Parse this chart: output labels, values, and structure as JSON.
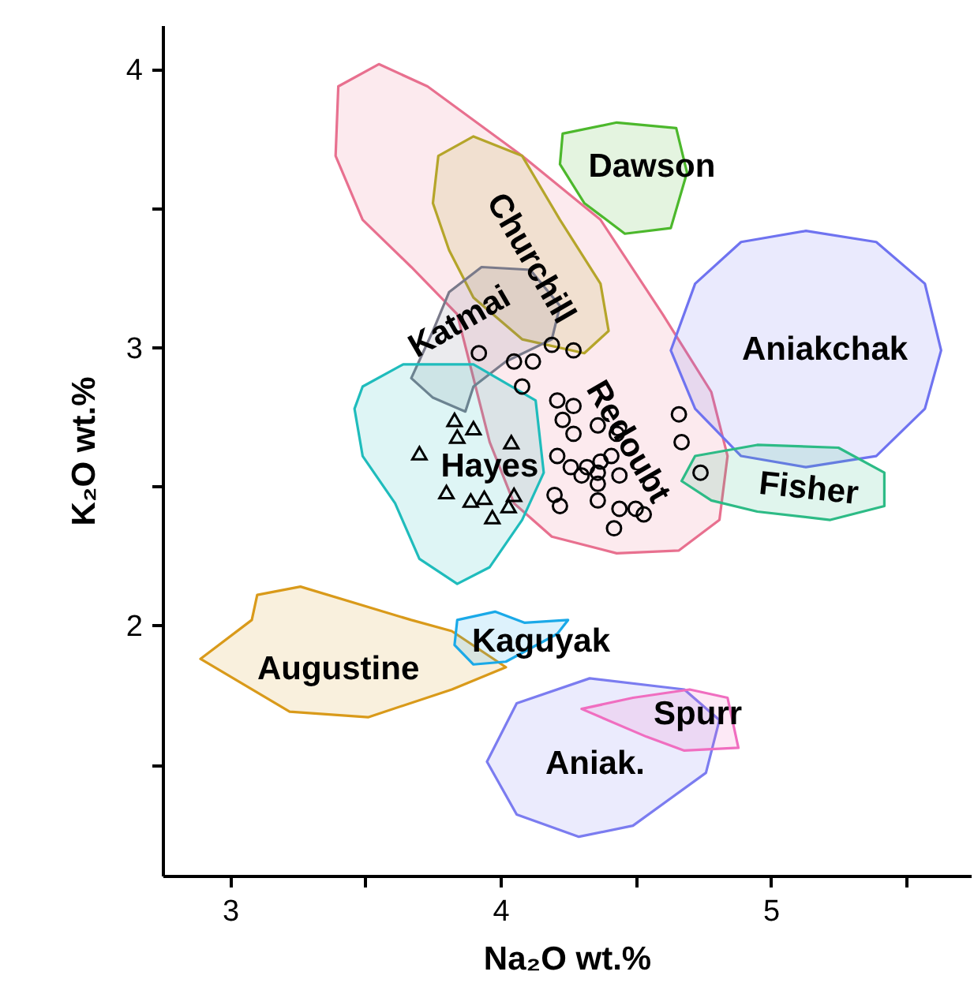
{
  "chart_data": {
    "type": "scatter",
    "xlabel": "Na₂O wt.%",
    "ylabel": "K₂O wt.%",
    "xlim": [
      2.75,
      5.74
    ],
    "ylim": [
      1.1,
      4.16
    ],
    "xticks": [
      3,
      {
        "value": 3.5,
        "label": null
      },
      4,
      {
        "value": 4.5,
        "label": null
      },
      5,
      {
        "value": 5.5,
        "label": null
      }
    ],
    "yticks": [
      {
        "value": 1.5,
        "label": null
      },
      2,
      {
        "value": 2.5,
        "label": null
      },
      3,
      {
        "value": 3.5,
        "label": null
      },
      4
    ],
    "grid": false,
    "series": [
      {
        "type": "area",
        "color": "#e8708f",
        "x": [
          3.4,
          3.55,
          3.73,
          4.08,
          4.37,
          4.6,
          4.78,
          4.84,
          4.81,
          4.66,
          4.43,
          4.19,
          4.05,
          3.96,
          3.9,
          3.84,
          3.67,
          3.49,
          3.39
        ],
        "values": [
          3.94,
          4.02,
          3.94,
          3.69,
          3.46,
          3.12,
          2.84,
          2.61,
          2.38,
          2.27,
          2.26,
          2.32,
          2.44,
          2.66,
          2.89,
          3.12,
          3.29,
          3.46,
          3.69
        ]
      },
      {
        "type": "area",
        "color": "#b5a52a",
        "x": [
          3.77,
          3.9,
          4.08,
          4.22,
          4.37,
          4.4,
          4.31,
          4.08,
          3.9,
          3.81,
          3.75
        ],
        "values": [
          3.69,
          3.76,
          3.69,
          3.46,
          3.23,
          3.06,
          2.98,
          3.03,
          3.18,
          3.35,
          3.52
        ]
      },
      {
        "type": "area",
        "color": "#4cb82c",
        "x": [
          4.23,
          4.43,
          4.65,
          4.69,
          4.63,
          4.46,
          4.31,
          4.22
        ],
        "values": [
          3.77,
          3.81,
          3.79,
          3.63,
          3.43,
          3.41,
          3.52,
          3.66
        ]
      },
      {
        "type": "area",
        "color": "#7a7a8a",
        "x": [
          3.81,
          3.93,
          4.11,
          4.22,
          4.19,
          4.02,
          3.9,
          3.87,
          3.75,
          3.67,
          3.75
        ],
        "values": [
          3.2,
          3.29,
          3.28,
          3.15,
          3.03,
          2.95,
          2.86,
          2.77,
          2.82,
          2.89,
          3.06
        ]
      },
      {
        "type": "area",
        "color": "#1fbcbc",
        "x": [
          3.49,
          3.64,
          3.9,
          4.13,
          4.16,
          4.08,
          3.96,
          3.84,
          3.7,
          3.61,
          3.49,
          3.46
        ],
        "values": [
          2.86,
          2.94,
          2.94,
          2.81,
          2.55,
          2.38,
          2.21,
          2.15,
          2.24,
          2.44,
          2.61,
          2.78
        ]
      },
      {
        "type": "area",
        "color": "#6f73f0",
        "x": [
          4.63,
          4.72,
          4.89,
          5.13,
          5.39,
          5.57,
          5.63,
          5.57,
          5.39,
          5.13,
          4.89,
          4.72
        ],
        "values": [
          2.99,
          3.23,
          3.38,
          3.42,
          3.38,
          3.23,
          2.99,
          2.78,
          2.61,
          2.57,
          2.61,
          2.78
        ]
      },
      {
        "type": "area",
        "color": "#2dbb86",
        "x": [
          4.72,
          4.95,
          5.25,
          5.42,
          5.42,
          5.22,
          4.95,
          4.78,
          4.67
        ],
        "values": [
          2.61,
          2.65,
          2.64,
          2.55,
          2.43,
          2.38,
          2.41,
          2.45,
          2.52
        ]
      },
      {
        "type": "area",
        "color": "#d99a1a",
        "x": [
          2.89,
          3.08,
          3.1,
          3.26,
          3.67,
          3.82,
          4.02,
          3.82,
          3.51,
          3.22
        ],
        "values": [
          1.88,
          2.02,
          2.11,
          2.14,
          2.02,
          1.98,
          1.85,
          1.77,
          1.67,
          1.69
        ]
      },
      {
        "type": "area",
        "color": "#1aa9e8",
        "x": [
          3.84,
          3.98,
          4.09,
          4.25,
          4.21,
          4.02,
          3.9,
          3.83
        ],
        "values": [
          2.02,
          2.05,
          2.01,
          2.02,
          1.97,
          1.87,
          1.86,
          1.93
        ]
      },
      {
        "type": "area",
        "color": "#7b7cf0",
        "x": [
          3.95,
          4.06,
          4.33,
          4.68,
          4.81,
          4.76,
          4.49,
          4.29,
          4.06
        ],
        "values": [
          1.51,
          1.72,
          1.81,
          1.77,
          1.66,
          1.47,
          1.28,
          1.24,
          1.32
        ]
      },
      {
        "type": "area",
        "color": "#f06ec0",
        "x": [
          4.3,
          4.49,
          4.7,
          4.84,
          4.88,
          4.68,
          4.54
        ],
        "values": [
          1.7,
          1.74,
          1.77,
          1.74,
          1.56,
          1.55,
          1.6
        ]
      },
      {
        "marker": "circle",
        "color": "#000000",
        "x": [
          4.05,
          4.12,
          4.19,
          4.27,
          4.08,
          4.21,
          4.27,
          4.23,
          4.27,
          4.36,
          4.43,
          4.66,
          4.67,
          4.74,
          4.21,
          4.26,
          4.32,
          4.37,
          4.41,
          4.44,
          4.36,
          4.3,
          4.2,
          4.22,
          4.36,
          4.36,
          4.44,
          4.5,
          4.53,
          4.42,
          3.92
        ],
        "values": [
          2.95,
          2.95,
          3.01,
          2.99,
          2.86,
          2.81,
          2.79,
          2.74,
          2.69,
          2.72,
          2.69,
          2.76,
          2.66,
          2.55,
          2.61,
          2.57,
          2.57,
          2.59,
          2.61,
          2.54,
          2.55,
          2.54,
          2.47,
          2.43,
          2.51,
          2.45,
          2.42,
          2.42,
          2.4,
          2.35,
          2.98
        ]
      },
      {
        "marker": "triangle",
        "color": "#000000",
        "x": [
          3.83,
          3.9,
          3.84,
          3.7,
          4.04,
          3.8,
          3.89,
          3.94,
          4.05,
          3.97,
          4.03
        ],
        "values": [
          2.74,
          2.71,
          2.68,
          2.62,
          2.66,
          2.48,
          2.45,
          2.46,
          2.47,
          2.39,
          2.43
        ]
      }
    ],
    "annotations": [
      "Dawson",
      "Churchill",
      "Aniakchak",
      "Katmai",
      "Redoubt",
      "Hayes",
      "Fisher",
      "Kaguyak",
      "Augustine",
      "Spurr",
      "Aniak."
    ]
  }
}
